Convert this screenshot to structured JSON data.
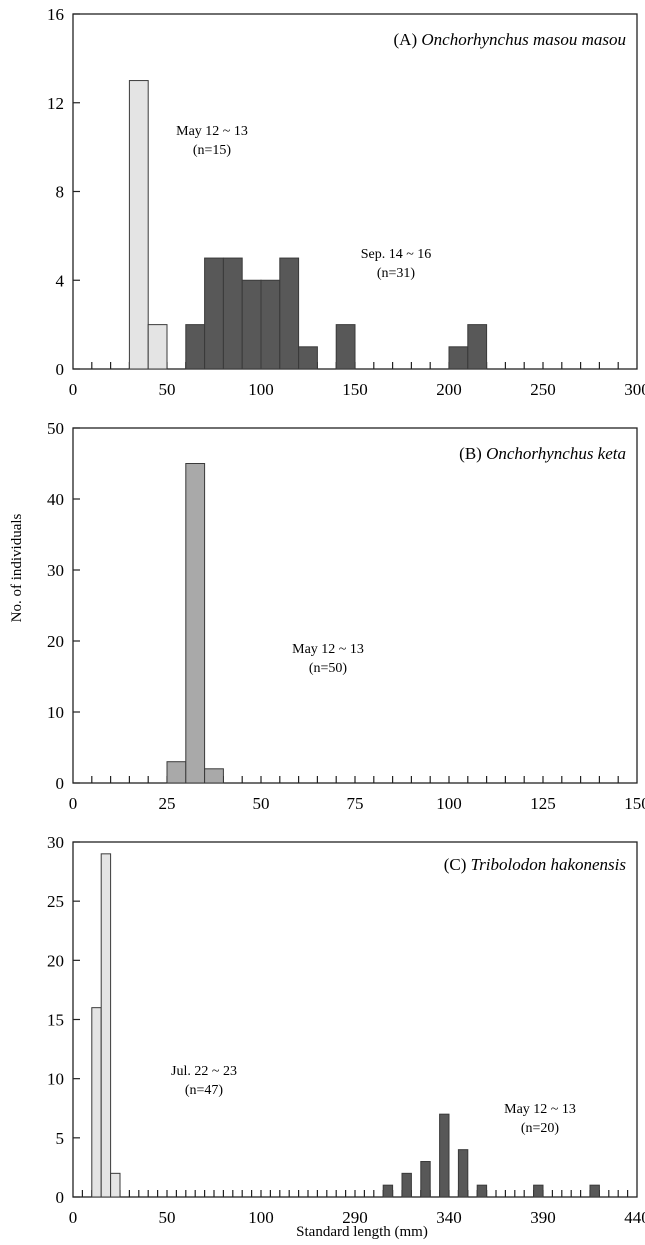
{
  "ylabel": "No. of individuals",
  "xlabel": "Standard length (mm)",
  "colors": {
    "light": "#e4e4e4",
    "medium": "#a9a9a9",
    "dark": "#585858",
    "edge": "#3a3a3a"
  },
  "chart_data": [
    {
      "type": "bar",
      "title_prefix": "(A) ",
      "title_species": "Onchorhynchus masou masou",
      "xticks": [
        "0",
        "50",
        "100",
        "150",
        "200",
        "250",
        "300"
      ],
      "xlim": [
        0,
        300
      ],
      "ylim": [
        0,
        16
      ],
      "yticks": [
        "0",
        "4",
        "8",
        "12",
        "16"
      ],
      "series": [
        {
          "label": "May 12 ~ 13",
          "n": "(n=15)",
          "color": "light",
          "bin_width": 10,
          "bins": [
            {
              "x": 40,
              "value": 13
            },
            {
              "x": 50,
              "value": 2
            }
          ]
        },
        {
          "label": "Sep. 14 ~ 16",
          "n": "(n=31)",
          "color": "dark",
          "bin_width": 10,
          "bins": [
            {
              "x": 70,
              "value": 2
            },
            {
              "x": 80,
              "value": 5
            },
            {
              "x": 90,
              "value": 5
            },
            {
              "x": 100,
              "value": 4
            },
            {
              "x": 110,
              "value": 4
            },
            {
              "x": 120,
              "value": 5
            },
            {
              "x": 130,
              "value": 1
            },
            {
              "x": 150,
              "value": 2
            },
            {
              "x": 210,
              "value": 1
            },
            {
              "x": 220,
              "value": 2
            }
          ]
        }
      ]
    },
    {
      "type": "bar",
      "title_prefix": "(B) ",
      "title_species": "Onchorhynchus keta",
      "xticks": [
        "0",
        "25",
        "50",
        "75",
        "100",
        "125",
        "150"
      ],
      "xlim": [
        0,
        150
      ],
      "ylim": [
        0,
        50
      ],
      "yticks": [
        "0",
        "10",
        "20",
        "30",
        "40",
        "50"
      ],
      "series": [
        {
          "label": "May 12 ~ 13",
          "n": "(n=50)",
          "color": "medium",
          "bin_width": 5,
          "bins": [
            {
              "x": 30,
              "value": 3
            },
            {
              "x": 35,
              "value": 45
            },
            {
              "x": 40,
              "value": 2
            }
          ]
        }
      ]
    },
    {
      "type": "bar",
      "title_prefix": "(C) ",
      "title_species": "Tribolodon hakonensis",
      "xticks": [
        "0",
        "50",
        "100",
        "290",
        "340",
        "390",
        "440"
      ],
      "xlim": [
        0,
        150
      ],
      "ylim": [
        0,
        30
      ],
      "yticks": [
        "0",
        "5",
        "10",
        "15",
        "20",
        "25",
        "30"
      ],
      "series": [
        {
          "label": "Jul. 22 ~ 23",
          "n": "(n=47)",
          "color": "light",
          "bin_width": 5,
          "bins": [
            {
              "x": 15,
              "value": 16
            },
            {
              "x": 20,
              "value": 29
            },
            {
              "x": 25,
              "value": 2
            }
          ]
        },
        {
          "label": "May 12 ~ 13",
          "n": "(n=20)",
          "color": "dark",
          "bin_width": 5,
          "bins": [
            {
              "x": 310,
              "value": 1
            },
            {
              "x": 320,
              "value": 2
            },
            {
              "x": 330,
              "value": 3
            },
            {
              "x": 340,
              "value": 7
            },
            {
              "x": 350,
              "value": 4
            },
            {
              "x": 360,
              "value": 1
            },
            {
              "x": 390,
              "value": 1
            },
            {
              "x": 420,
              "value": 1
            }
          ]
        }
      ]
    }
  ]
}
